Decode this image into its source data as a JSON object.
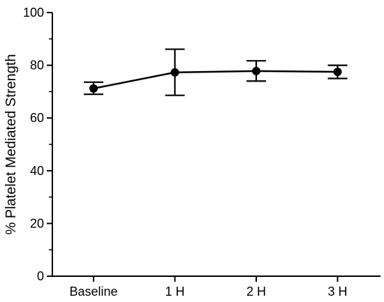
{
  "chart_data": {
    "type": "line",
    "categories": [
      "Baseline",
      "1 H",
      "2 H",
      "3 H"
    ],
    "series": [
      {
        "values": [
          71.2,
          77.3,
          77.8,
          77.5
        ],
        "err_low": [
          69.0,
          68.6,
          74.0,
          75.0
        ],
        "err_high": [
          73.6,
          86.1,
          81.7,
          80.0
        ]
      }
    ],
    "title": "",
    "xlabel": "",
    "ylabel": "% Platelet Mediated Strength",
    "ylim": [
      0,
      100
    ],
    "yticks": [
      0,
      20,
      40,
      60,
      80,
      100
    ],
    "grid": false,
    "legend": "none",
    "color": "#000000"
  }
}
